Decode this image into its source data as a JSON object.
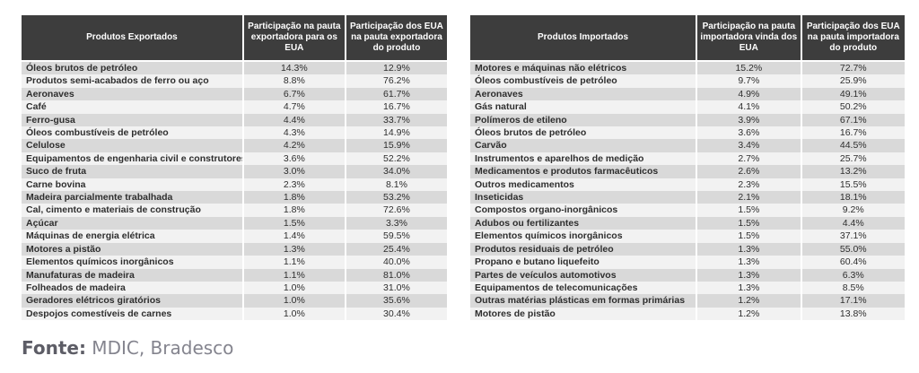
{
  "colors": {
    "page_bg": "#ffffff",
    "header_bg": "#3d3d3d",
    "header_text": "#ffffff",
    "row_odd_bg": "#d9d9d9",
    "row_even_bg": "#f2f2f2",
    "cell_text": "#2e2e2e",
    "source_label_color": "#5d5d66",
    "source_text_color": "#84848e"
  },
  "footer": {
    "label": "Fonte:",
    "text": " MDIC, Bradesco"
  },
  "chart_data": [
    {
      "type": "table",
      "title": "Produtos Exportados",
      "columns": [
        "Produtos Exportados",
        "Participação na pauta exportadora para os EUA",
        "Participação dos EUA na pauta exportadora do produto"
      ],
      "rows": [
        [
          "Óleos brutos de petróleo",
          "14.3%",
          "12.9%"
        ],
        [
          "Produtos semi-acabados de ferro ou aço",
          "8.8%",
          "76.2%"
        ],
        [
          "Aeronaves",
          "6.7%",
          "61.7%"
        ],
        [
          "Café",
          "4.7%",
          "16.7%"
        ],
        [
          "Ferro-gusa",
          "4.4%",
          "33.7%"
        ],
        [
          "Óleos combustíveis de petróleo",
          "4.3%",
          "14.9%"
        ],
        [
          "Celulose",
          "4.2%",
          "15.9%"
        ],
        [
          "Equipamentos de engenharia civil e construtores",
          "3.6%",
          "52.2%"
        ],
        [
          "Suco de fruta",
          "3.0%",
          "34.0%"
        ],
        [
          "Carne bovina",
          "2.3%",
          "8.1%"
        ],
        [
          "Madeira parcialmente trabalhada",
          "1.8%",
          "53.2%"
        ],
        [
          "Cal, cimento e materiais de construção",
          "1.8%",
          "72.6%"
        ],
        [
          "Açúcar",
          "1.5%",
          "3.3%"
        ],
        [
          "Máquinas de energia elétrica",
          "1.4%",
          "59.5%"
        ],
        [
          "Motores a pistão",
          "1.3%",
          "25.4%"
        ],
        [
          "Elementos químicos inorgânicos",
          "1.1%",
          "40.0%"
        ],
        [
          "Manufaturas de madeira",
          "1.1%",
          "81.0%"
        ],
        [
          "Folheados de madeira",
          "1.0%",
          "31.0%"
        ],
        [
          "Geradores elétricos giratórios",
          "1.0%",
          "35.6%"
        ],
        [
          "Despojos comestíveis de carnes",
          "1.0%",
          "30.4%"
        ]
      ]
    },
    {
      "type": "table",
      "title": "Produtos Importados",
      "columns": [
        "Produtos Importados",
        "Participação na pauta importadora vinda dos EUA",
        "Participação dos EUA na pauta importadora do produto"
      ],
      "rows": [
        [
          "Motores e máquinas não elétricos",
          "15.2%",
          "72.7%"
        ],
        [
          "Óleos combustíveis de petróleo",
          "9.7%",
          "25.9%"
        ],
        [
          "Aeronaves",
          "4.9%",
          "49.1%"
        ],
        [
          "Gás natural",
          "4.1%",
          "50.2%"
        ],
        [
          "Polímeros de etileno",
          "3.9%",
          "67.1%"
        ],
        [
          "Óleos brutos de petróleo",
          "3.6%",
          "16.7%"
        ],
        [
          "Carvão",
          "3.4%",
          "44.5%"
        ],
        [
          "Instrumentos e aparelhos de medição",
          "2.7%",
          "25.7%"
        ],
        [
          "Medicamentos e produtos farmacêuticos",
          "2.6%",
          "13.2%"
        ],
        [
          "Outros medicamentos",
          "2.3%",
          "15.5%"
        ],
        [
          "Inseticidas",
          "2.1%",
          "18.1%"
        ],
        [
          "Compostos organo-inorgânicos",
          "1.5%",
          "9.2%"
        ],
        [
          "Adubos ou fertilizantes",
          "1.5%",
          "4.4%"
        ],
        [
          "Elementos químicos inorgânicos",
          "1.5%",
          "37.1%"
        ],
        [
          "Produtos residuais de petróleo",
          "1.3%",
          "55.0%"
        ],
        [
          "Propano e butano liquefeito",
          "1.3%",
          "60.4%"
        ],
        [
          "Partes de veículos automotivos",
          "1.3%",
          "6.3%"
        ],
        [
          "Equipamentos de telecomunicações",
          "1.3%",
          "8.5%"
        ],
        [
          "Outras matérias plásticas em formas primárias",
          "1.2%",
          "17.1%"
        ],
        [
          "Motores de pistão",
          "1.2%",
          "13.8%"
        ]
      ]
    }
  ]
}
